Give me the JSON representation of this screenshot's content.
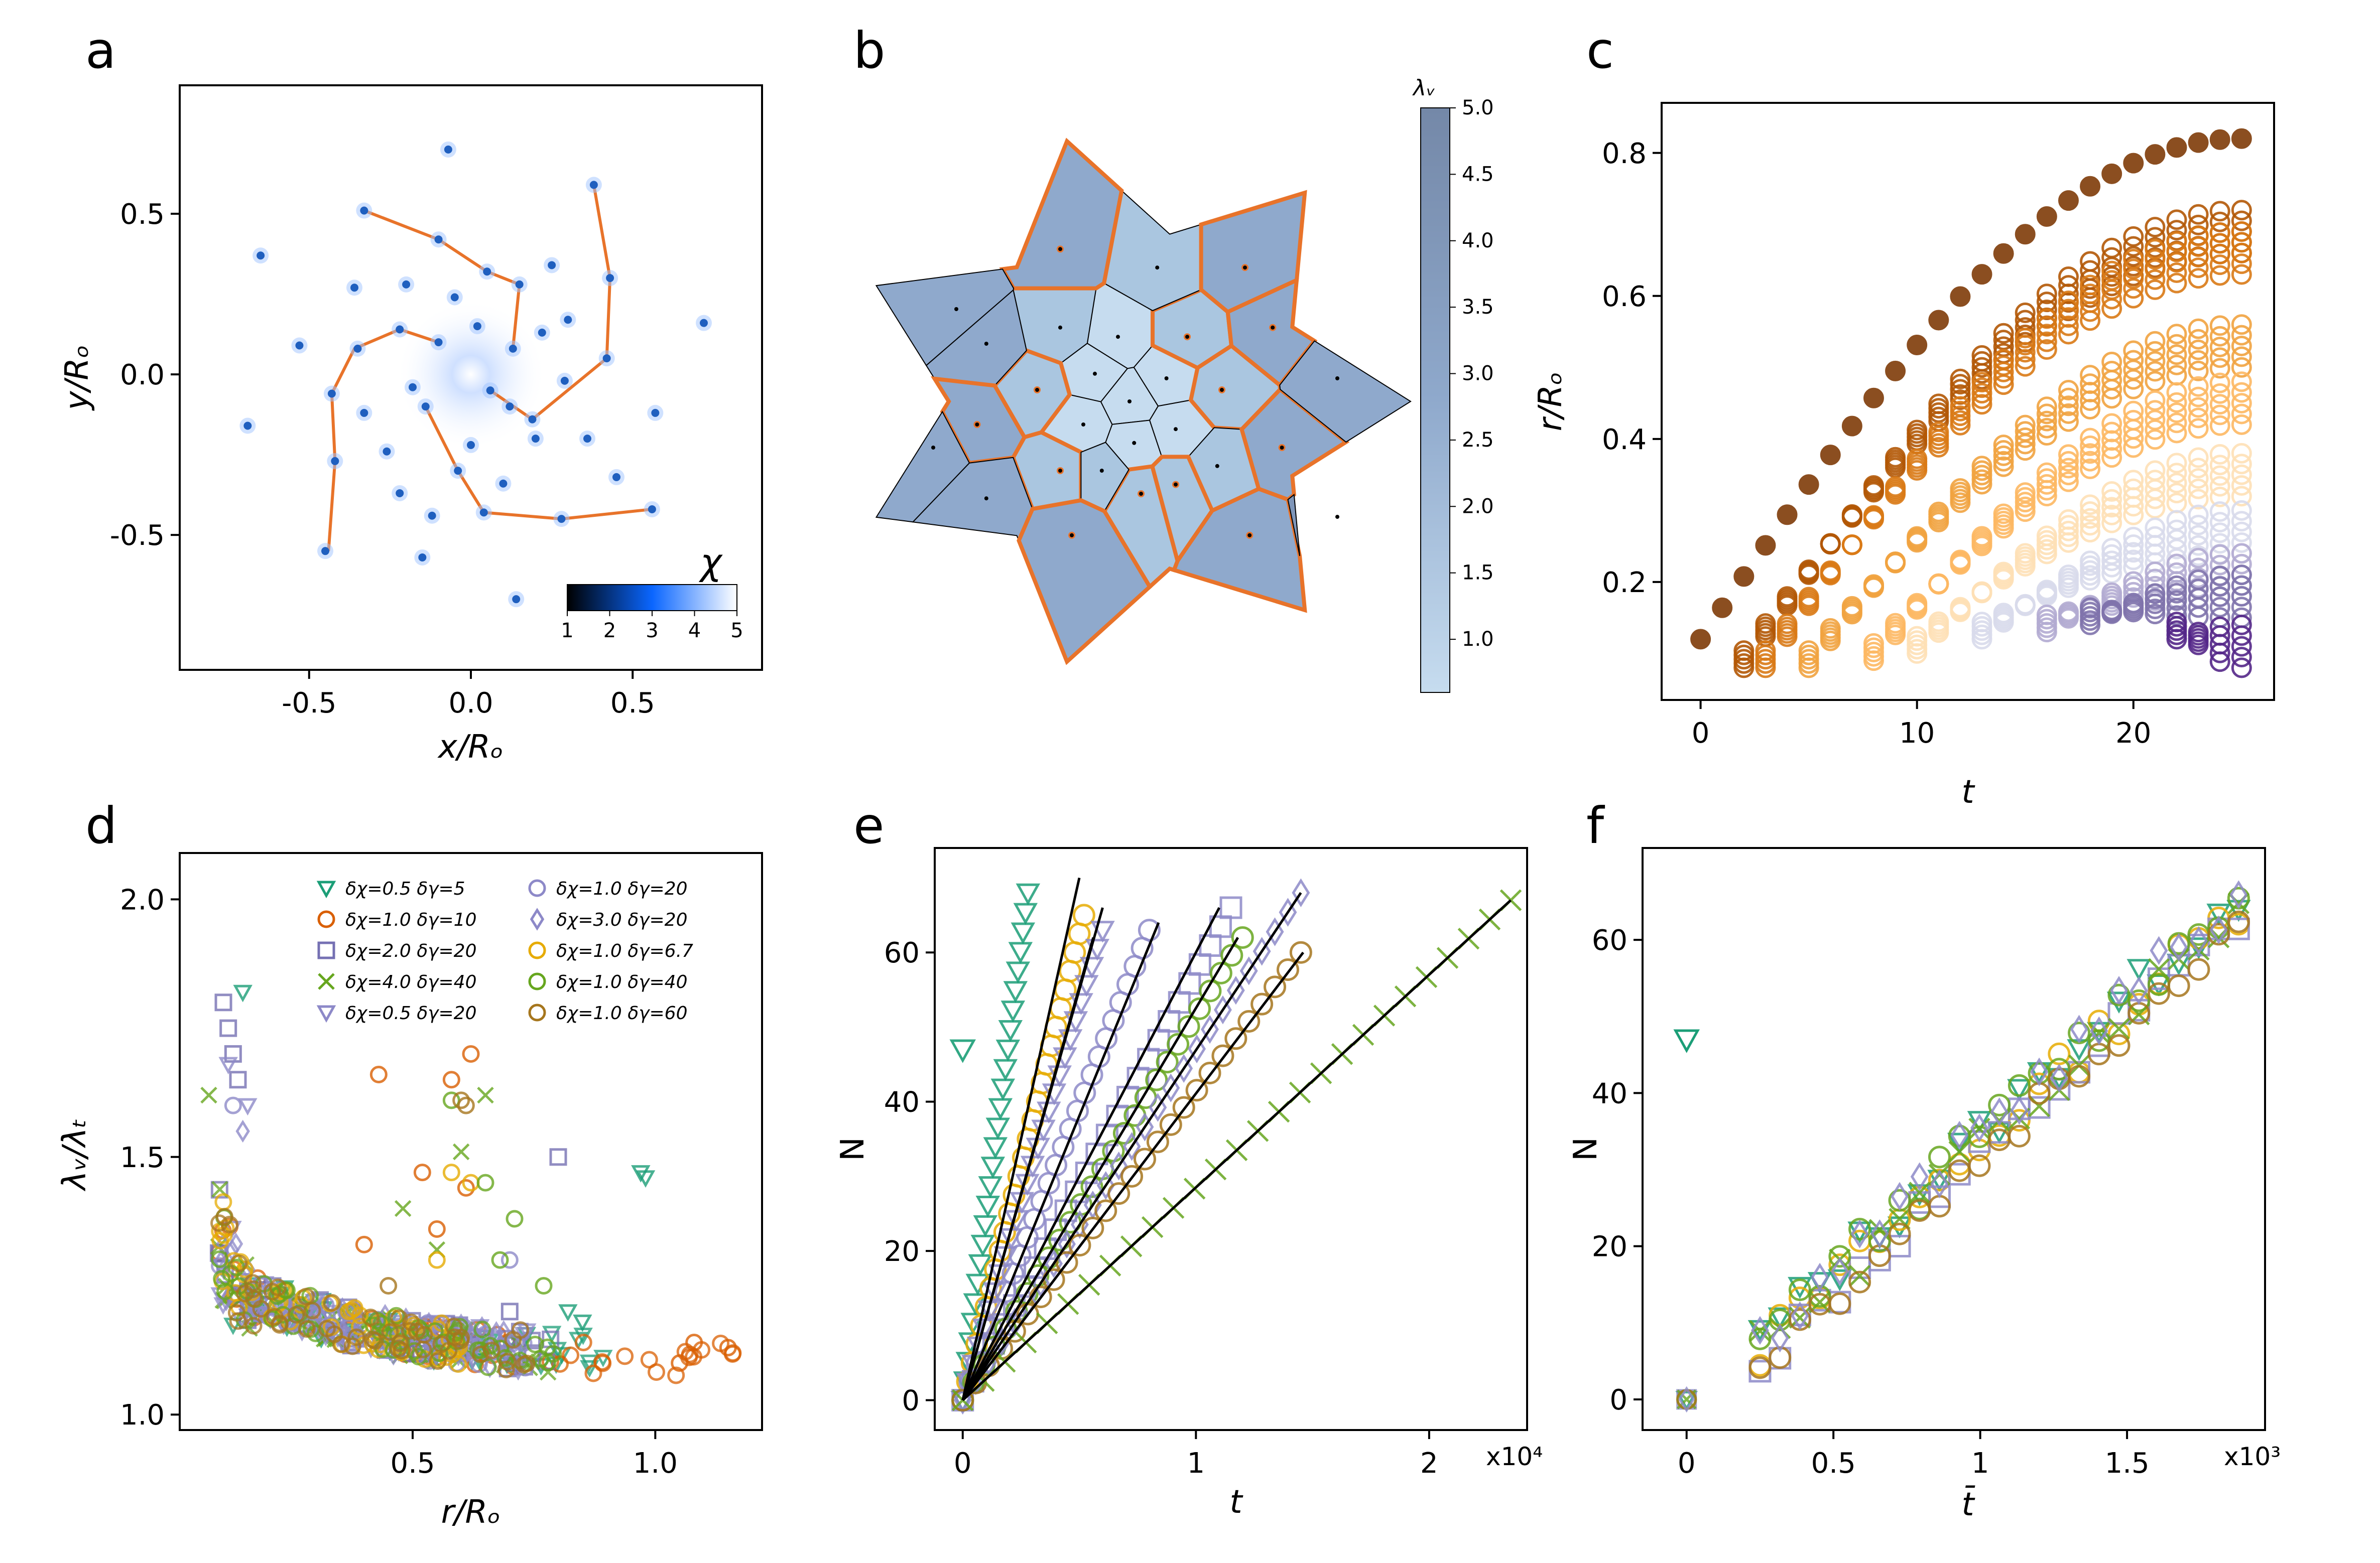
{
  "panels": {
    "a": {
      "letter": "a",
      "xlabel": "x/Rₒ",
      "ylabel": "y/Rₒ",
      "colorbar_label": "χ",
      "colorbar_ticks": [
        "1",
        "2",
        "3",
        "4",
        "5"
      ]
    },
    "b": {
      "letter": "b",
      "colorbar_label": "λᵥ",
      "colorbar_ticks": [
        "1.0",
        "1.5",
        "2.0",
        "2.5",
        "3.0",
        "3.5",
        "4.0",
        "4.5",
        "5.0"
      ]
    },
    "c": {
      "letter": "c",
      "xlabel": "t",
      "ylabel": "r/Rₒ"
    },
    "d": {
      "letter": "d",
      "xlabel": "r/Rₒ",
      "ylabel": "λᵥ/λₜ"
    },
    "e": {
      "letter": "e",
      "xlabel": "t",
      "ylabel": "N",
      "x_multiplier": "x10⁴"
    },
    "f": {
      "letter": "f",
      "xlabel": "t̄",
      "ylabel": "N",
      "x_multiplier": "x10³"
    }
  },
  "colors": {
    "orange_line": "#e8732a",
    "point_blue": "#1f5fbf",
    "green": "#1b9e77",
    "orange": "#d95f02",
    "purple": "#7570b3",
    "lime": "#66a61e",
    "yellow": "#e6ab02",
    "brown": "#a6761d",
    "lavender": "#8d89c8",
    "voronoi_fill": "#8a9bb7"
  },
  "chart_data": [
    {
      "panel": "a",
      "type": "scatter",
      "xlabel": "x/Rₒ",
      "ylabel": "y/Rₒ",
      "xlim": [
        -0.9,
        0.9
      ],
      "ylim": [
        -0.92,
        0.9
      ],
      "xticks": [
        "-0.5",
        "0.0",
        "0.5"
      ],
      "yticks": [
        "-0.5",
        "0.0",
        "0.5"
      ],
      "points": [
        [
          -0.07,
          0.7
        ],
        [
          -0.65,
          0.37
        ],
        [
          -0.33,
          0.51
        ],
        [
          -0.1,
          0.42
        ],
        [
          0.05,
          0.32
        ],
        [
          0.38,
          0.59
        ],
        [
          0.43,
          0.3
        ],
        [
          0.72,
          0.16
        ],
        [
          -0.36,
          0.27
        ],
        [
          -0.2,
          0.28
        ],
        [
          -0.05,
          0.24
        ],
        [
          0.15,
          0.28
        ],
        [
          0.25,
          0.34
        ],
        [
          -0.22,
          0.14
        ],
        [
          0.02,
          0.15
        ],
        [
          0.13,
          0.08
        ],
        [
          0.3,
          0.17
        ],
        [
          -0.53,
          0.09
        ],
        [
          -0.35,
          0.08
        ],
        [
          -0.1,
          0.1
        ],
        [
          0.22,
          0.13
        ],
        [
          0.42,
          0.05
        ],
        [
          -0.43,
          -0.06
        ],
        [
          -0.18,
          -0.04
        ],
        [
          0.06,
          -0.05
        ],
        [
          0.29,
          -0.02
        ],
        [
          -0.69,
          -0.16
        ],
        [
          -0.33,
          -0.12
        ],
        [
          -0.14,
          -0.1
        ],
        [
          0.12,
          -0.1
        ],
        [
          0.19,
          -0.14
        ],
        [
          0.57,
          -0.12
        ],
        [
          -0.26,
          -0.24
        ],
        [
          0.0,
          -0.22
        ],
        [
          0.2,
          -0.2
        ],
        [
          0.36,
          -0.2
        ],
        [
          -0.42,
          -0.27
        ],
        [
          -0.04,
          -0.3
        ],
        [
          0.1,
          -0.34
        ],
        [
          0.45,
          -0.32
        ],
        [
          -0.22,
          -0.37
        ],
        [
          -0.12,
          -0.44
        ],
        [
          0.04,
          -0.43
        ],
        [
          0.28,
          -0.45
        ],
        [
          0.56,
          -0.42
        ],
        [
          -0.45,
          -0.55
        ],
        [
          -0.15,
          -0.57
        ],
        [
          0.14,
          -0.7
        ]
      ],
      "arms": [
        [
          [
            -0.33,
            0.51
          ],
          [
            -0.1,
            0.42
          ],
          [
            0.05,
            0.32
          ],
          [
            0.15,
            0.28
          ],
          [
            0.13,
            0.08
          ]
        ],
        [
          [
            0.38,
            0.59
          ],
          [
            0.43,
            0.3
          ],
          [
            0.42,
            0.05
          ],
          [
            0.19,
            -0.14
          ],
          [
            0.06,
            -0.05
          ]
        ],
        [
          [
            -0.44,
            -0.55
          ],
          [
            -0.42,
            -0.27
          ],
          [
            -0.43,
            -0.06
          ],
          [
            -0.36,
            0.08
          ],
          [
            -0.22,
            0.14
          ],
          [
            -0.1,
            0.1
          ]
        ],
        [
          [
            0.56,
            -0.42
          ],
          [
            0.28,
            -0.45
          ],
          [
            0.04,
            -0.43
          ],
          [
            -0.04,
            -0.3
          ],
          [
            -0.14,
            -0.1
          ]
        ]
      ],
      "colorbar": {
        "label": "χ",
        "range": [
          1,
          5
        ],
        "ticks": [
          1,
          2,
          3,
          4,
          5
        ]
      }
    },
    {
      "panel": "b",
      "type": "voronoi",
      "colorbar": {
        "label": "λᵥ",
        "range": [
          0.6,
          5.0
        ],
        "ticks": [
          1.0,
          1.5,
          2.0,
          2.5,
          3.0,
          3.5,
          4.0,
          4.5,
          5.0
        ]
      },
      "seeds": [
        [
          0.0,
          0.0
        ],
        [
          -0.15,
          0.12
        ],
        [
          0.16,
          0.1
        ],
        [
          0.02,
          -0.18
        ],
        [
          -0.2,
          -0.1
        ],
        [
          0.2,
          -0.12
        ],
        [
          -0.05,
          0.28
        ],
        [
          0.25,
          0.28
        ],
        [
          -0.3,
          0.32
        ],
        [
          0.4,
          0.05
        ],
        [
          -0.4,
          0.05
        ],
        [
          0.38,
          -0.28
        ],
        [
          -0.3,
          -0.3
        ],
        [
          0.05,
          -0.4
        ],
        [
          -0.12,
          -0.3
        ],
        [
          0.2,
          -0.36
        ],
        [
          0.62,
          0.32
        ],
        [
          -0.62,
          0.25
        ],
        [
          -0.66,
          -0.1
        ],
        [
          0.66,
          -0.2
        ],
        [
          -0.62,
          -0.42
        ],
        [
          0.52,
          -0.58
        ],
        [
          -0.25,
          -0.58
        ],
        [
          0.12,
          0.58
        ],
        [
          -0.3,
          0.66
        ],
        [
          0.5,
          0.58
        ],
        [
          -0.75,
          0.4
        ],
        [
          0.9,
          0.1
        ],
        [
          0.9,
          -0.5
        ],
        [
          -0.85,
          -0.2
        ]
      ]
    },
    {
      "panel": "c",
      "type": "scatter",
      "xlabel": "t",
      "ylabel": "r/Rₒ",
      "xlim": [
        -1.8,
        26.5
      ],
      "ylim": [
        0.035,
        0.87
      ],
      "xticks": [
        0,
        10,
        20
      ],
      "yticks": [
        0.2,
        0.4,
        0.6,
        0.8
      ],
      "series": [
        {
          "color": "#7f3b08",
          "t0": 0,
          "r0": 0.12,
          "r_end": 0.82
        },
        {
          "color": "#b35806",
          "t0": 2,
          "r0": 0.08,
          "r_end": 0.72
        },
        {
          "color": "#d97a16",
          "t0": 3,
          "r0": 0.08,
          "r_end": 0.69
        },
        {
          "color": "#f1a340",
          "t0": 5,
          "r0": 0.08,
          "r_end": 0.56
        },
        {
          "color": "#fdb863",
          "t0": 8,
          "r0": 0.09,
          "r_end": 0.48
        },
        {
          "color": "#fee0b6",
          "t0": 10,
          "r0": 0.1,
          "r_end": 0.38
        },
        {
          "color": "#d8daeb",
          "t0": 13,
          "r0": 0.12,
          "r_end": 0.3
        },
        {
          "color": "#b2abd2",
          "t0": 16,
          "r0": 0.13,
          "r_end": 0.24
        },
        {
          "color": "#8073ac",
          "t0": 18,
          "r0": 0.14,
          "r_end": 0.21
        },
        {
          "color": "#542788",
          "t0": 22,
          "r0": 0.12,
          "r_end": 0.14
        }
      ]
    },
    {
      "panel": "d",
      "type": "scatter",
      "xlabel": "r/Rₒ",
      "ylabel": "λᵥ/λₜ",
      "xlim": [
        0.02,
        1.22
      ],
      "ylim": [
        0.97,
        2.09
      ],
      "xticks": [
        0.5,
        1.0
      ],
      "yticks": [
        1.0,
        1.5,
        2.0
      ],
      "series": [
        {
          "name": "δχ=0.5 δγ=5",
          "marker": "tri",
          "color": "#1b9e77",
          "xmax": 0.9,
          "extras": [
            [
              0.97,
              1.47
            ],
            [
              0.98,
              1.46
            ],
            [
              0.15,
              1.82
            ],
            [
              0.82,
              1.2
            ],
            [
              0.85,
              1.18
            ]
          ]
        },
        {
          "name": "δχ=1.0 δγ=10",
          "marker": "circle",
          "color": "#d95f02",
          "xmax": 1.17,
          "extras": [
            [
              0.43,
              1.66
            ],
            [
              0.58,
              1.65
            ],
            [
              0.62,
              1.7
            ],
            [
              0.52,
              1.47
            ],
            [
              0.61,
              1.44
            ],
            [
              0.4,
              1.33
            ],
            [
              0.38,
              1.2
            ],
            [
              0.55,
              1.36
            ],
            [
              1.08,
              1.14
            ],
            [
              1.15,
              1.13
            ],
            [
              1.05,
              1.1
            ]
          ]
        },
        {
          "name": "δχ=2.0 δγ=20",
          "marker": "square",
          "color": "#7570b3",
          "xmax": 0.8,
          "extras": [
            [
              0.11,
              1.8
            ],
            [
              0.12,
              1.75
            ],
            [
              0.13,
              1.7
            ],
            [
              0.14,
              1.65
            ],
            [
              0.8,
              1.5
            ],
            [
              0.7,
              1.2
            ]
          ]
        },
        {
          "name": "δχ=4.0 δγ=40",
          "marker": "x",
          "color": "#66a61e",
          "xmax": 0.78,
          "extras": [
            [
              0.65,
              1.62
            ],
            [
              0.6,
              1.51
            ],
            [
              0.48,
              1.4
            ],
            [
              0.55,
              1.32
            ],
            [
              0.08,
              1.62
            ]
          ]
        },
        {
          "name": "δχ=0.5 δγ=20",
          "marker": "tri",
          "color": "#8d89c8",
          "xmax": 0.75,
          "extras": [
            [
              0.16,
              1.6
            ],
            [
              0.12,
              1.68
            ]
          ]
        },
        {
          "name": "δχ=1.0 δγ=20",
          "marker": "circle",
          "color": "#8d89c8",
          "xmax": 0.75,
          "extras": [
            [
              0.13,
              1.6
            ],
            [
              0.7,
              1.3
            ]
          ]
        },
        {
          "name": "δχ=3.0 δγ=20",
          "marker": "diamond",
          "color": "#8d89c8",
          "xmax": 0.7,
          "extras": [
            [
              0.15,
              1.55
            ]
          ]
        },
        {
          "name": "δχ=1.0 δγ=6.7",
          "marker": "circle",
          "color": "#e6ab02",
          "xmax": 0.6,
          "extras": [
            [
              0.58,
              1.47
            ],
            [
              0.62,
              1.45
            ],
            [
              0.55,
              1.3
            ]
          ]
        },
        {
          "name": "δχ=1.0 δγ=40",
          "marker": "circle",
          "color": "#66a61e",
          "xmax": 0.8,
          "extras": [
            [
              0.58,
              1.61
            ],
            [
              0.71,
              1.38
            ],
            [
              0.68,
              1.3
            ],
            [
              0.65,
              1.45
            ],
            [
              0.77,
              1.25
            ]
          ]
        },
        {
          "name": "δχ=1.0 δγ=60",
          "marker": "circle",
          "color": "#a6761d",
          "xmax": 0.75,
          "extras": [
            [
              0.6,
              1.61
            ],
            [
              0.61,
              1.6
            ],
            [
              0.45,
              1.25
            ]
          ]
        }
      ]
    },
    {
      "panel": "e",
      "type": "scatter",
      "xlabel": "t",
      "ylabel": "N",
      "x_multiplier": "x10⁴",
      "xlim": [
        -0.12,
        2.42
      ],
      "ylim": [
        -4,
        74
      ],
      "xticks": [
        0,
        1,
        2
      ],
      "yticks": [
        0,
        20,
        40,
        60
      ],
      "series": [
        {
          "marker": "tri",
          "color": "#1b9e77",
          "tmax": 0.28,
          "nmax": 68,
          "outlier": [
            0.0,
            47
          ]
        },
        {
          "marker": "circle",
          "color": "#e6ab02",
          "tmax": 0.52,
          "nmax": 65
        },
        {
          "marker": "tri",
          "color": "#8d89c8",
          "tmax": 0.6,
          "nmax": 63
        },
        {
          "marker": "circle",
          "color": "#8d89c8",
          "tmax": 0.8,
          "nmax": 63
        },
        {
          "marker": "square",
          "color": "#8d89c8",
          "tmax": 1.15,
          "nmax": 66
        },
        {
          "marker": "circle",
          "color": "#66a61e",
          "tmax": 1.2,
          "nmax": 62
        },
        {
          "marker": "diamond",
          "color": "#8d89c8",
          "tmax": 1.45,
          "nmax": 68
        },
        {
          "marker": "circle",
          "color": "#a6761d",
          "tmax": 1.45,
          "nmax": 60
        },
        {
          "marker": "x",
          "color": "#66a61e",
          "tmax": 2.35,
          "nmax": 67
        }
      ],
      "fit_lines": [
        [
          0.5,
          70
        ],
        [
          0.6,
          66
        ],
        [
          0.56,
          62
        ],
        [
          0.84,
          64
        ],
        [
          1.1,
          66
        ],
        [
          1.18,
          62
        ],
        [
          1.45,
          68
        ],
        [
          1.46,
          60
        ],
        [
          2.35,
          67
        ]
      ]
    },
    {
      "panel": "f",
      "type": "scatter",
      "xlabel": "t̄",
      "ylabel": "N",
      "x_multiplier": "x10³",
      "xlim": [
        -0.15,
        1.97
      ],
      "ylim": [
        -4,
        72
      ],
      "xticks": [
        "0",
        "0.5",
        "1",
        "1.5"
      ],
      "yticks": [
        0,
        20,
        40,
        60
      ],
      "outlier": [
        0.0,
        47
      ],
      "series": [
        {
          "marker": "tri",
          "color": "#1b9e77"
        },
        {
          "marker": "circle",
          "color": "#e6ab02"
        },
        {
          "marker": "square",
          "color": "#8d89c8"
        },
        {
          "marker": "circle",
          "color": "#66a61e"
        },
        {
          "marker": "x",
          "color": "#66a61e"
        },
        {
          "marker": "circle",
          "color": "#a6761d"
        },
        {
          "marker": "diamond",
          "color": "#8d89c8"
        }
      ],
      "trend": {
        "t_start": 0.25,
        "n_start": 8,
        "t_end": 1.88,
        "n_end": 66
      }
    }
  ]
}
